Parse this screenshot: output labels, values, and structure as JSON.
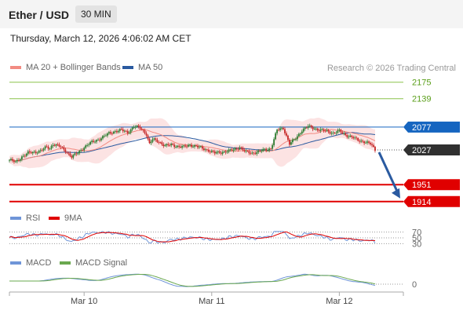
{
  "header": {
    "title": "Ether / USD",
    "timeframe": "30 MIN"
  },
  "datetime": "Thursday, March 12, 2026 4:06:02 AM CET",
  "legend": {
    "ma20": "MA 20 + Bollinger Bands",
    "ma50": "MA 50"
  },
  "credit": "Research © 2026 Trading Central",
  "colors": {
    "ma20": "#f28b82",
    "ma50": "#2a5aa0",
    "up": "#2e7d32",
    "down": "#c62828",
    "resistance": "#8bc34a",
    "support": "#e00000",
    "pivot": "#1565c0",
    "current": "#303030",
    "rsi": "#6f95d8",
    "rsi_ma": "#e00000",
    "macd": "#6f95d8",
    "macd_signal": "#6aa84f"
  },
  "rsi_panel": {
    "label": "RSI",
    "ma_label": "9MA",
    "levels": [
      "70",
      "50",
      "30"
    ]
  },
  "macd_panel": {
    "label": "MACD",
    "signal_label": "MACD Signal",
    "zero": "0"
  },
  "chart_data": {
    "type": "candlestick",
    "title": "Ether / USD",
    "timeframe": "30 MIN",
    "x_ticks": [
      "Mar 10",
      "Mar 11",
      "Mar 12"
    ],
    "ylim": [
      1905,
      2190
    ],
    "levels": [
      {
        "value": 2175,
        "label": "2175",
        "type": "resistance"
      },
      {
        "value": 2139,
        "label": "2139",
        "type": "resistance"
      },
      {
        "value": 2077,
        "label": "2077",
        "type": "pivot"
      },
      {
        "value": 2027,
        "label": "2027",
        "type": "current"
      },
      {
        "value": 1951,
        "label": "1951",
        "type": "support"
      },
      {
        "value": 1914,
        "label": "1914",
        "type": "support"
      }
    ],
    "forecast": {
      "from": 2027,
      "to": 1914,
      "direction": "down"
    },
    "price_anchors": [
      [
        0,
        2005
      ],
      [
        4,
        2000
      ],
      [
        8,
        2012
      ],
      [
        12,
        2020
      ],
      [
        16,
        2022
      ],
      [
        20,
        2025
      ],
      [
        24,
        2033
      ],
      [
        26,
        2030
      ],
      [
        28,
        2040
      ],
      [
        32,
        2035
      ],
      [
        36,
        2025
      ],
      [
        40,
        2012
      ],
      [
        44,
        2020
      ],
      [
        48,
        2033
      ],
      [
        52,
        2042
      ],
      [
        56,
        2048
      ],
      [
        60,
        2055
      ],
      [
        64,
        2063
      ],
      [
        68,
        2068
      ],
      [
        72,
        2070
      ],
      [
        76,
        2065
      ],
      [
        80,
        2078
      ],
      [
        84,
        2075
      ],
      [
        88,
        2062
      ],
      [
        90,
        2040
      ],
      [
        92,
        2050
      ],
      [
        96,
        2045
      ],
      [
        100,
        2036
      ],
      [
        104,
        2038
      ],
      [
        108,
        2035
      ],
      [
        112,
        2033
      ],
      [
        116,
        2038
      ],
      [
        120,
        2035
      ],
      [
        124,
        2030
      ],
      [
        128,
        2026
      ],
      [
        132,
        2020
      ],
      [
        136,
        2022
      ],
      [
        140,
        2024
      ],
      [
        144,
        2027
      ],
      [
        148,
        2033
      ],
      [
        152,
        2022
      ],
      [
        156,
        2020
      ],
      [
        160,
        2023
      ],
      [
        164,
        2027
      ],
      [
        168,
        2030
      ],
      [
        172,
        2070
      ],
      [
        176,
        2075
      ],
      [
        180,
        2040
      ],
      [
        184,
        2052
      ],
      [
        188,
        2070
      ],
      [
        192,
        2078
      ],
      [
        196,
        2074
      ],
      [
        200,
        2070
      ],
      [
        204,
        2068
      ],
      [
        208,
        2064
      ],
      [
        212,
        2068
      ],
      [
        216,
        2060
      ],
      [
        220,
        2055
      ],
      [
        224,
        2048
      ],
      [
        228,
        2045
      ],
      [
        232,
        2040
      ],
      [
        235,
        2027
      ]
    ]
  }
}
